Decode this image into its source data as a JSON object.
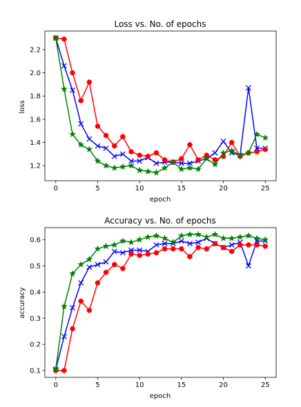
{
  "chart_data": [
    {
      "type": "line",
      "title": "Loss vs. No. of epochs",
      "xlabel": "epoch",
      "ylabel": "loss",
      "xlim": [
        -1.3,
        26.3
      ],
      "ylim": [
        1.07,
        2.36
      ],
      "xticks": [
        0,
        5,
        10,
        15,
        20,
        25
      ],
      "yticks": [
        1.2,
        1.4,
        1.6,
        1.8,
        2.0,
        2.2
      ],
      "ytick_labels": [
        "1.2",
        "1.4",
        "1.6",
        "1.8",
        "2.0",
        "2.2"
      ],
      "grid": false,
      "x": [
        0,
        1,
        2,
        3,
        4,
        5,
        6,
        7,
        8,
        9,
        10,
        11,
        12,
        13,
        14,
        15,
        16,
        17,
        18,
        19,
        20,
        21,
        22,
        23,
        24,
        25
      ],
      "series": [
        {
          "color": "#0000ff",
          "marker": "x",
          "values": [
            2.3,
            2.06,
            1.85,
            1.56,
            1.43,
            1.37,
            1.35,
            1.28,
            1.3,
            1.24,
            1.24,
            1.27,
            1.22,
            1.23,
            1.23,
            1.22,
            1.22,
            1.24,
            1.26,
            1.31,
            1.41,
            1.31,
            1.29,
            1.87,
            1.35,
            1.35
          ]
        },
        {
          "color": "#ff0000",
          "marker": "o",
          "values": [
            2.3,
            2.29,
            2.0,
            1.76,
            1.92,
            1.54,
            1.46,
            1.37,
            1.45,
            1.32,
            1.29,
            1.28,
            1.31,
            1.25,
            1.23,
            1.26,
            1.38,
            1.25,
            1.29,
            1.25,
            1.28,
            1.4,
            1.28,
            1.31,
            1.32,
            1.34
          ]
        },
        {
          "color": "#008000",
          "marker": "*",
          "values": [
            2.3,
            1.86,
            1.47,
            1.38,
            1.34,
            1.24,
            1.2,
            1.18,
            1.19,
            1.2,
            1.16,
            1.15,
            1.14,
            1.18,
            1.23,
            1.17,
            1.18,
            1.17,
            1.26,
            1.21,
            1.31,
            1.33,
            1.29,
            1.31,
            1.47,
            1.44
          ]
        }
      ]
    },
    {
      "type": "line",
      "title": "Accuracy vs. No. of epochs",
      "xlabel": "epoch",
      "ylabel": "accuracy",
      "xlim": [
        -1.3,
        26.3
      ],
      "ylim": [
        0.074,
        0.646
      ],
      "xticks": [
        0,
        5,
        10,
        15,
        20,
        25
      ],
      "yticks": [
        0.1,
        0.2,
        0.3,
        0.4,
        0.5,
        0.6
      ],
      "ytick_labels": [
        "0.1",
        "0.2",
        "0.3",
        "0.4",
        "0.5",
        "0.6"
      ],
      "grid": false,
      "x": [
        0,
        1,
        2,
        3,
        4,
        5,
        6,
        7,
        8,
        9,
        10,
        11,
        12,
        13,
        14,
        15,
        16,
        17,
        18,
        19,
        20,
        21,
        22,
        23,
        24,
        25
      ],
      "series": [
        {
          "color": "#0000ff",
          "marker": "x",
          "values": [
            0.105,
            0.23,
            0.34,
            0.435,
            0.495,
            0.505,
            0.515,
            0.555,
            0.55,
            0.56,
            0.56,
            0.555,
            0.58,
            0.585,
            0.585,
            0.595,
            0.585,
            0.59,
            0.605,
            0.585,
            0.57,
            0.58,
            0.59,
            0.5,
            0.595,
            0.595
          ]
        },
        {
          "color": "#ff0000",
          "marker": "o",
          "values": [
            0.1,
            0.1,
            0.26,
            0.365,
            0.33,
            0.435,
            0.475,
            0.505,
            0.49,
            0.545,
            0.54,
            0.545,
            0.55,
            0.565,
            0.565,
            0.565,
            0.535,
            0.57,
            0.565,
            0.585,
            0.57,
            0.555,
            0.58,
            0.58,
            0.58,
            0.575
          ]
        },
        {
          "color": "#008000",
          "marker": "*",
          "values": [
            0.105,
            0.345,
            0.47,
            0.505,
            0.525,
            0.565,
            0.575,
            0.58,
            0.595,
            0.59,
            0.6,
            0.61,
            0.615,
            0.605,
            0.59,
            0.615,
            0.62,
            0.62,
            0.61,
            0.62,
            0.605,
            0.605,
            0.61,
            0.615,
            0.605,
            0.6
          ]
        }
      ]
    }
  ]
}
